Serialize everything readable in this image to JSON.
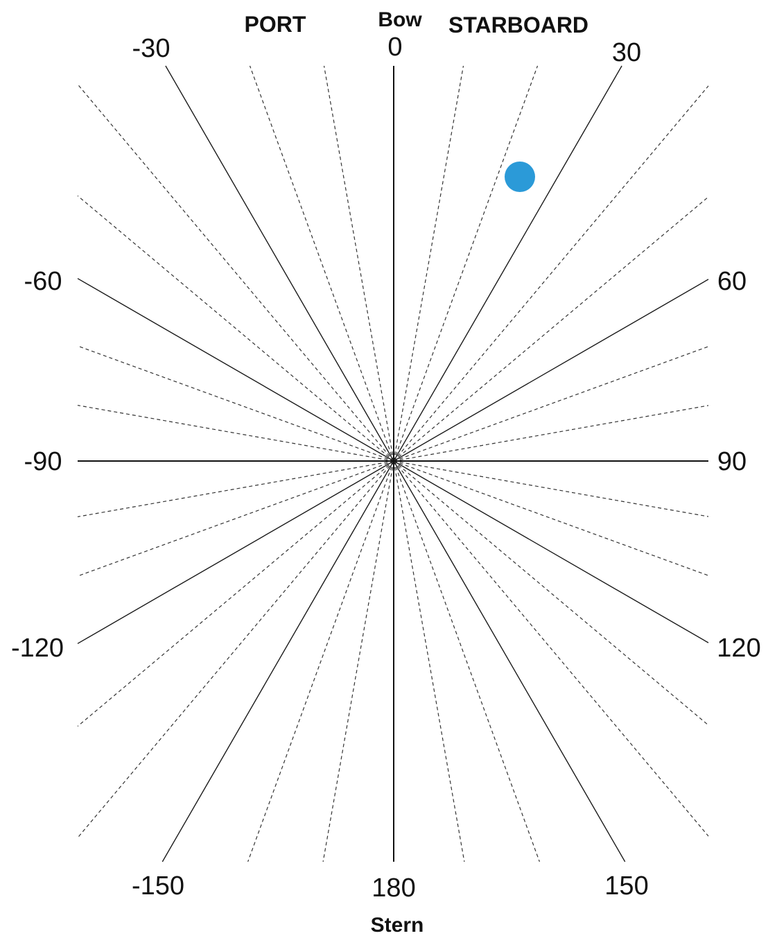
{
  "labels": {
    "port": "PORT",
    "bow": "Bow",
    "starboard": "STARBOARD",
    "stern": "Stern"
  },
  "angle_labels": [
    {
      "key": "a0",
      "text": "0"
    },
    {
      "key": "a30",
      "text": "30"
    },
    {
      "key": "a60",
      "text": "60"
    },
    {
      "key": "a90",
      "text": "90"
    },
    {
      "key": "a120",
      "text": "120"
    },
    {
      "key": "a150",
      "text": "150"
    },
    {
      "key": "a180",
      "text": "180"
    },
    {
      "key": "am30",
      "text": "-30"
    },
    {
      "key": "am60",
      "text": "-60"
    },
    {
      "key": "am90",
      "text": "-90"
    },
    {
      "key": "am120",
      "text": "-120"
    },
    {
      "key": "am150",
      "text": "-150"
    }
  ],
  "rays": {
    "major_step_deg": 30,
    "minor_step_deg": 10
  },
  "marker": {
    "bearing_deg": 25,
    "color": "#2b9ad8"
  },
  "colors": {
    "lines": "#1a1a1a",
    "background": "#ffffff"
  }
}
